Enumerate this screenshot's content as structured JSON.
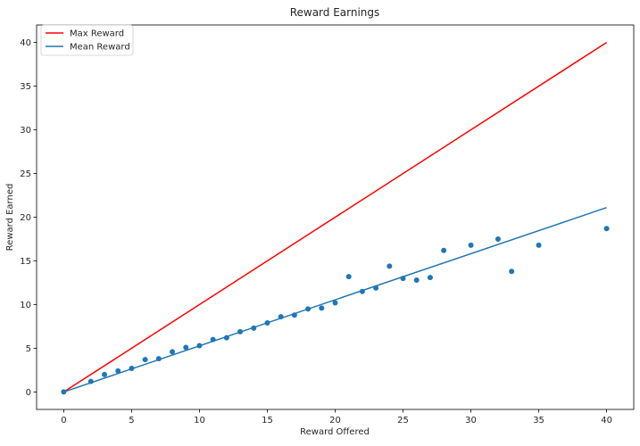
{
  "chart_data": {
    "type": "scatter",
    "title": "Reward Earnings",
    "xlabel": "Reward Offered",
    "ylabel": "Reward Earned",
    "xlim": [
      -2,
      42
    ],
    "ylim": [
      -2,
      42
    ],
    "xticks": [
      0,
      5,
      10,
      15,
      20,
      25,
      30,
      35,
      40
    ],
    "yticks": [
      0,
      5,
      10,
      15,
      20,
      25,
      30,
      35,
      40
    ],
    "legend_position": "top-left",
    "grid": false,
    "lines": [
      {
        "name": "Max Reward",
        "color": "#ff0000",
        "x": [
          0,
          40
        ],
        "y": [
          0,
          40
        ]
      },
      {
        "name": "Mean Reward",
        "color": "#1f77b4",
        "x": [
          0,
          40
        ],
        "y": [
          0,
          21.1
        ]
      }
    ],
    "scatter": {
      "color": "#1f77b4",
      "x": [
        0,
        2,
        3,
        4,
        5,
        6,
        7,
        8,
        9,
        10,
        11,
        12,
        13,
        14,
        15,
        16,
        17,
        18,
        19,
        20,
        21,
        22,
        23,
        24,
        25,
        26,
        27,
        28,
        30,
        32,
        33,
        35,
        40
      ],
      "y": [
        0,
        1.2,
        2.0,
        2.4,
        2.7,
        3.7,
        3.8,
        4.6,
        5.1,
        5.3,
        6.0,
        6.2,
        6.9,
        7.3,
        7.9,
        8.6,
        8.8,
        9.5,
        9.6,
        10.2,
        13.2,
        11.5,
        11.9,
        14.4,
        13.0,
        12.8,
        13.1,
        16.2,
        16.8,
        17.5,
        13.8,
        16.8,
        18.7
      ]
    }
  }
}
